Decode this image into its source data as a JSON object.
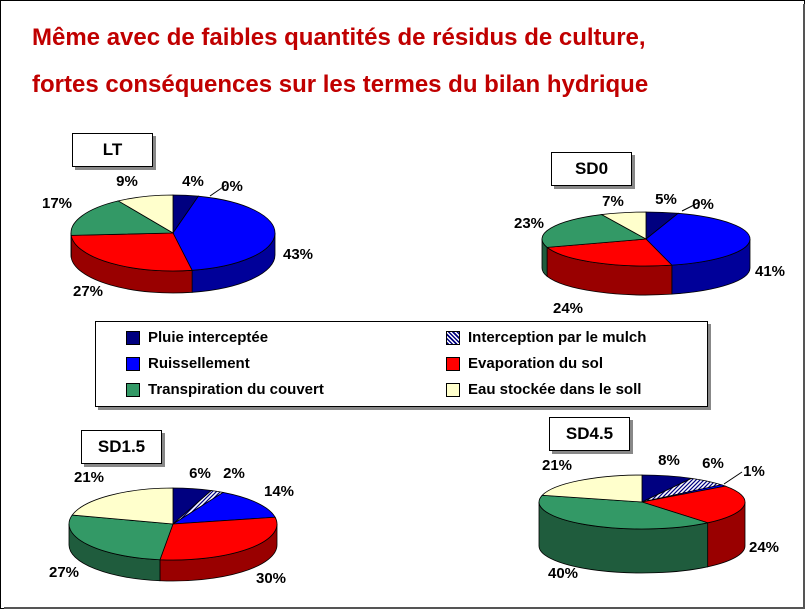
{
  "title_line1": "Même avec de faibles quantités de résidus de culture,",
  "title_line2": "fortes conséquences sur les termes du bilan hydrique",
  "legend": [
    {
      "label": "Pluie  interceptée",
      "color": "#000080",
      "pattern": "solid"
    },
    {
      "label": "Interception par le mulch",
      "color": "#000080",
      "pattern": "hatch"
    },
    {
      "label": "Ruissellement",
      "color": "#0000ff",
      "pattern": "solid"
    },
    {
      "label": "Evaporation du sol",
      "color": "#ff0000",
      "pattern": "solid"
    },
    {
      "label": "Transpiration du couvert",
      "color": "#339966",
      "pattern": "solid"
    },
    {
      "label": "Eau stockée dans le soll",
      "color": "#ffffcc",
      "pattern": "solid"
    }
  ],
  "chart_data": [
    {
      "type": "pie",
      "title": "LT",
      "categories": [
        "Pluie  interceptée",
        "Interception par le mulch",
        "Ruissellement",
        "Evaporation du sol",
        "Transpiration du couvert",
        "Eau stockée dans le soll"
      ],
      "values": [
        4,
        0,
        43,
        27,
        17,
        9
      ],
      "labels": [
        "4%",
        "0%",
        "43%",
        "27%",
        "17%",
        "9%"
      ]
    },
    {
      "type": "pie",
      "title": "SD0",
      "categories": [
        "Pluie  interceptée",
        "Interception par le mulch",
        "Ruissellement",
        "Evaporation du sol",
        "Transpiration du couvert",
        "Eau stockée dans le soll"
      ],
      "values": [
        5,
        0,
        41,
        24,
        23,
        7
      ],
      "labels": [
        "5%",
        "0%",
        "41%",
        "24%",
        "23%",
        "7%"
      ]
    },
    {
      "type": "pie",
      "title": "SD1.5",
      "categories": [
        "Pluie  interceptée",
        "Interception par le mulch",
        "Ruissellement",
        "Evaporation du sol",
        "Transpiration du couvert",
        "Eau stockée dans le soll"
      ],
      "values": [
        6,
        2,
        14,
        30,
        27,
        21
      ],
      "labels": [
        "6%",
        "2%",
        "14%",
        "30%",
        "27%",
        "21%"
      ]
    },
    {
      "type": "pie",
      "title": "SD4.5",
      "categories": [
        "Pluie  interceptée",
        "Interception par le mulch",
        "Ruissellement",
        "Evaporation du sol",
        "Transpiration du couvert",
        "Eau stockée dans le soll"
      ],
      "values": [
        8,
        6,
        1,
        24,
        40,
        21
      ],
      "labels": [
        "8%",
        "6%",
        "1%",
        "24%",
        "40%",
        "21%"
      ]
    }
  ]
}
